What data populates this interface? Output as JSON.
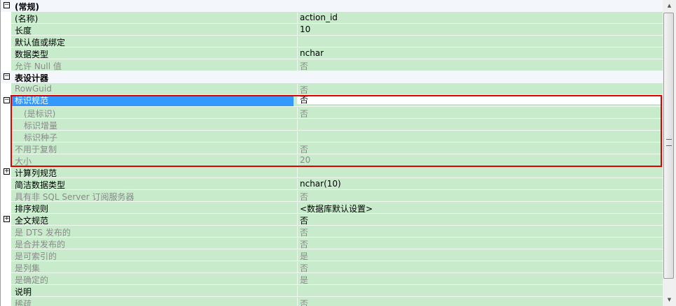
{
  "rows": [
    {
      "type": "category",
      "name": "(常规)",
      "expander": "minus"
    },
    {
      "name": "(名称)",
      "value": "action_id"
    },
    {
      "name": "长度",
      "value": "10"
    },
    {
      "name": "默认值或绑定",
      "value": ""
    },
    {
      "name": "数据类型",
      "value": "nchar"
    },
    {
      "name": "允许 Null 值",
      "value": "否",
      "readonly": true
    },
    {
      "type": "category",
      "name": "表设计器",
      "expander": "minus"
    },
    {
      "name": "RowGuid",
      "value": "否",
      "readonly": true
    },
    {
      "name": "标识规范",
      "value": "否",
      "expander": "minus",
      "selected": true
    },
    {
      "name": "(是标识)",
      "value": "否",
      "readonly": true,
      "indent": true
    },
    {
      "name": "标识增量",
      "value": "",
      "readonly": true,
      "indent": true
    },
    {
      "name": "标识种子",
      "value": "",
      "readonly": true,
      "indent": true
    },
    {
      "name": "不用于复制",
      "value": "否",
      "readonly": true
    },
    {
      "name": "大小",
      "value": "20",
      "readonly": true
    },
    {
      "name": "计算列规范",
      "value": "",
      "expander": "plus"
    },
    {
      "name": "简洁数据类型",
      "value": "nchar(10)"
    },
    {
      "name": "具有非 SQL Server 订阅服务器",
      "value": "否",
      "readonly": true
    },
    {
      "name": "排序规则",
      "value": "<数据库默认设置>"
    },
    {
      "name": "全文规范",
      "value": "否",
      "expander": "plus"
    },
    {
      "name": "是 DTS 发布的",
      "value": "否",
      "readonly": true
    },
    {
      "name": "是合并发布的",
      "value": "否",
      "readonly": true
    },
    {
      "name": "是可索引的",
      "value": "是",
      "readonly": true
    },
    {
      "name": "是列集",
      "value": "否",
      "readonly": true
    },
    {
      "name": "是确定的",
      "value": "是",
      "readonly": true
    },
    {
      "name": "说明",
      "value": ""
    },
    {
      "name": "稀疏",
      "value": "否",
      "readonly": true
    }
  ],
  "highlight_color": "#e00000",
  "selection_color": "#3399ff",
  "row_color": "#c8ebcc"
}
